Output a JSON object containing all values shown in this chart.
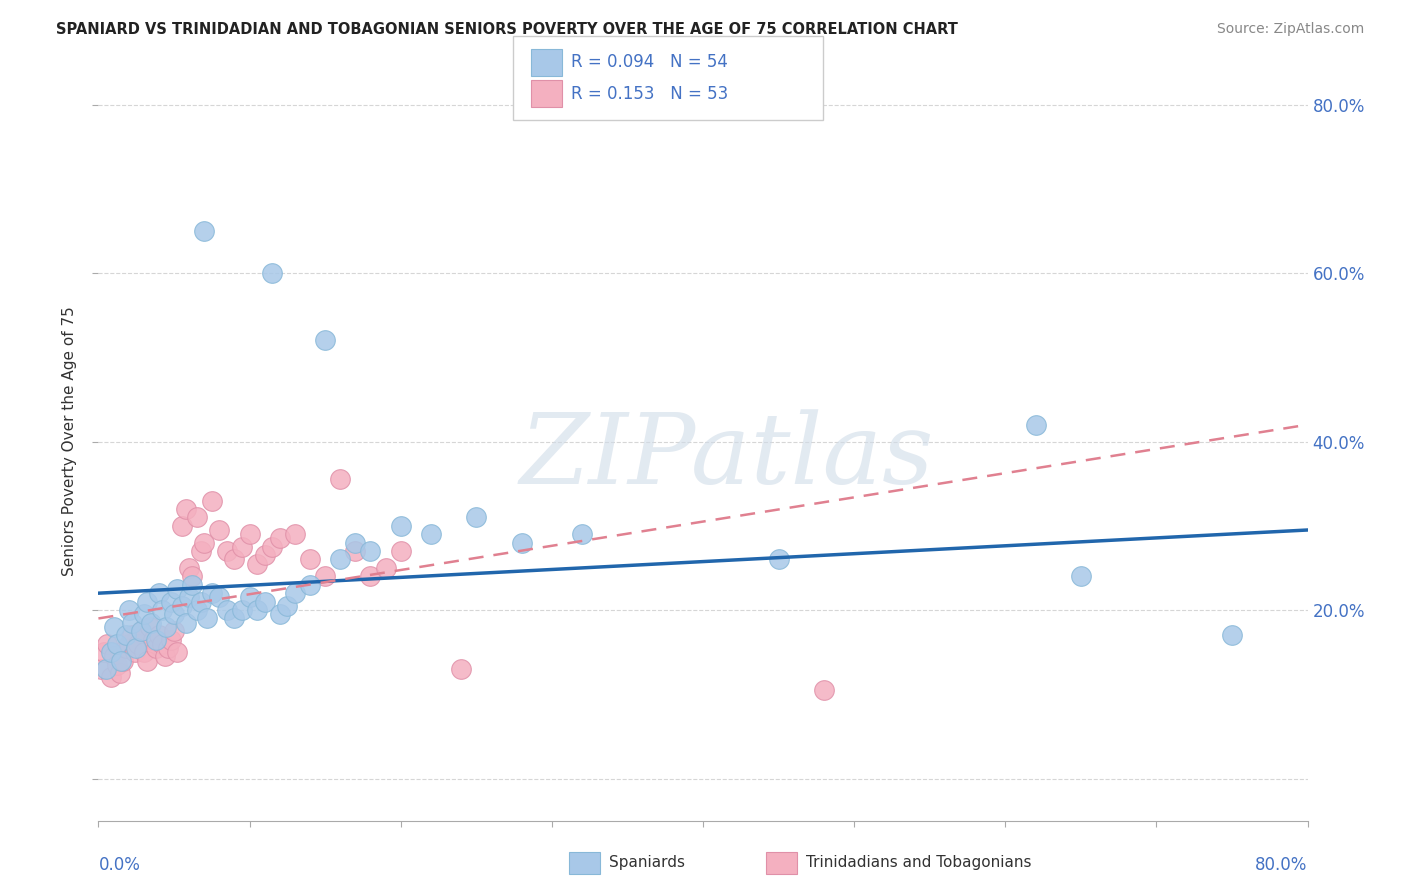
{
  "title": "SPANIARD VS TRINIDADIAN AND TOBAGONIAN SENIORS POVERTY OVER THE AGE OF 75 CORRELATION CHART",
  "source": "Source: ZipAtlas.com",
  "ylabel": "Seniors Poverty Over the Age of 75",
  "legend_label1": "Spaniards",
  "legend_label2": "Trinidadians and Tobagonians",
  "r1": 0.094,
  "n1": 54,
  "r2": 0.153,
  "n2": 53,
  "color1": "#a8c8e8",
  "color2": "#f4b0c0",
  "trendline1_color": "#2166ac",
  "trendline2_color": "#e08090",
  "watermark": "ZIPatlas",
  "xlim": [
    0.0,
    0.8
  ],
  "ylim": [
    -0.05,
    0.85
  ],
  "blue_x": [
    0.005,
    0.008,
    0.01,
    0.012,
    0.015,
    0.018,
    0.02,
    0.022,
    0.025,
    0.028,
    0.03,
    0.032,
    0.035,
    0.038,
    0.04,
    0.042,
    0.045,
    0.048,
    0.05,
    0.052,
    0.055,
    0.058,
    0.06,
    0.062,
    0.065,
    0.068,
    0.07,
    0.072,
    0.075,
    0.08,
    0.085,
    0.09,
    0.095,
    0.1,
    0.105,
    0.11,
    0.115,
    0.12,
    0.125,
    0.13,
    0.14,
    0.15,
    0.16,
    0.17,
    0.18,
    0.2,
    0.22,
    0.25,
    0.28,
    0.32,
    0.45,
    0.62,
    0.65,
    0.75
  ],
  "blue_y": [
    0.13,
    0.15,
    0.18,
    0.16,
    0.14,
    0.17,
    0.2,
    0.185,
    0.155,
    0.175,
    0.195,
    0.21,
    0.185,
    0.165,
    0.22,
    0.2,
    0.18,
    0.21,
    0.195,
    0.225,
    0.205,
    0.185,
    0.215,
    0.23,
    0.2,
    0.21,
    0.65,
    0.19,
    0.22,
    0.215,
    0.2,
    0.19,
    0.2,
    0.215,
    0.2,
    0.21,
    0.6,
    0.195,
    0.205,
    0.22,
    0.23,
    0.52,
    0.26,
    0.28,
    0.27,
    0.3,
    0.29,
    0.31,
    0.28,
    0.29,
    0.26,
    0.42,
    0.24,
    0.17
  ],
  "pink_x": [
    0.002,
    0.004,
    0.006,
    0.008,
    0.01,
    0.012,
    0.014,
    0.016,
    0.018,
    0.02,
    0.022,
    0.024,
    0.026,
    0.028,
    0.03,
    0.032,
    0.034,
    0.036,
    0.038,
    0.04,
    0.042,
    0.044,
    0.046,
    0.048,
    0.05,
    0.052,
    0.055,
    0.058,
    0.06,
    0.062,
    0.065,
    0.068,
    0.07,
    0.075,
    0.08,
    0.085,
    0.09,
    0.095,
    0.1,
    0.105,
    0.11,
    0.115,
    0.12,
    0.13,
    0.14,
    0.15,
    0.16,
    0.17,
    0.18,
    0.19,
    0.2,
    0.24,
    0.48
  ],
  "pink_y": [
    0.13,
    0.15,
    0.16,
    0.12,
    0.145,
    0.135,
    0.125,
    0.14,
    0.155,
    0.16,
    0.17,
    0.15,
    0.16,
    0.175,
    0.15,
    0.14,
    0.18,
    0.165,
    0.155,
    0.17,
    0.16,
    0.145,
    0.155,
    0.165,
    0.175,
    0.15,
    0.3,
    0.32,
    0.25,
    0.24,
    0.31,
    0.27,
    0.28,
    0.33,
    0.295,
    0.27,
    0.26,
    0.275,
    0.29,
    0.255,
    0.265,
    0.275,
    0.285,
    0.29,
    0.26,
    0.24,
    0.355,
    0.27,
    0.24,
    0.25,
    0.27,
    0.13,
    0.105
  ],
  "trendline1_x0": 0.0,
  "trendline1_y0": 0.22,
  "trendline1_x1": 0.8,
  "trendline1_y1": 0.295,
  "trendline2_x0": 0.0,
  "trendline2_y0": 0.19,
  "trendline2_x1": 0.8,
  "trendline2_y1": 0.42
}
